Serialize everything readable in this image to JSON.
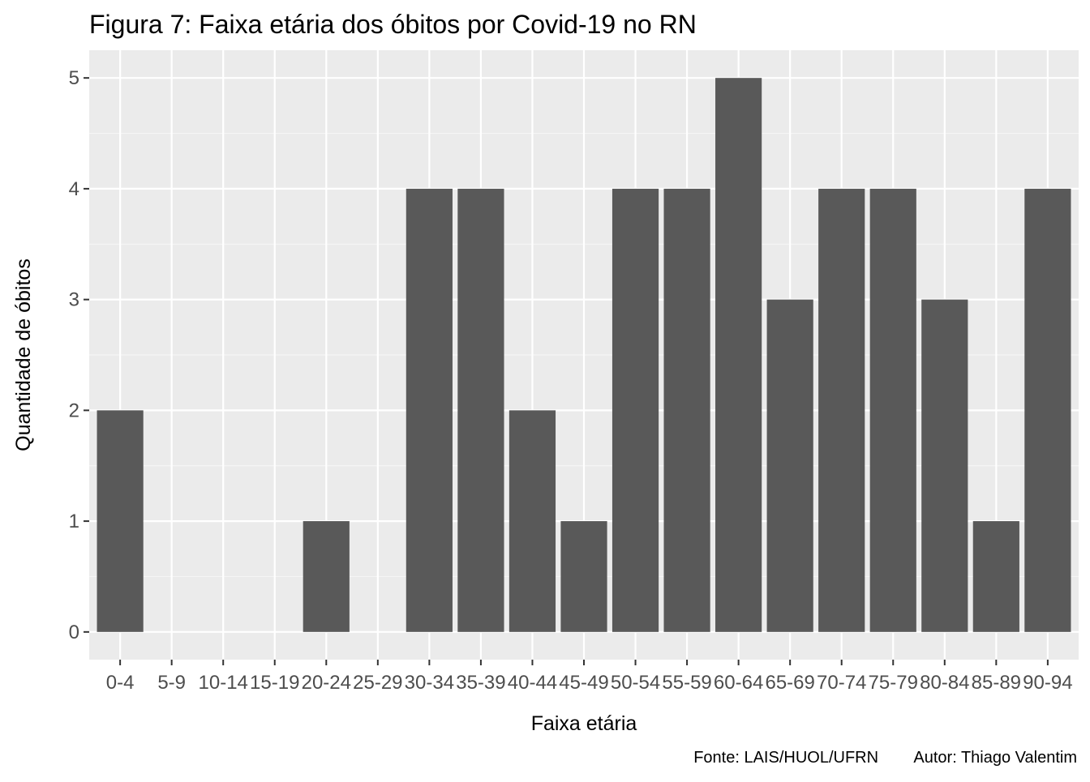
{
  "chart_data": {
    "type": "bar",
    "title": "Figura 7: Faixa etária dos óbitos por Covid-19 no RN",
    "xlabel": "Faixa etária",
    "ylabel": "Quantidade de óbitos",
    "categories": [
      "0-4",
      "5-9",
      "10-14",
      "15-19",
      "20-24",
      "25-29",
      "30-34",
      "35-39",
      "40-44",
      "45-49",
      "50-54",
      "55-59",
      "60-64",
      "65-69",
      "70-74",
      "75-79",
      "80-84",
      "85-89",
      "90-94"
    ],
    "values": [
      2,
      0,
      0,
      0,
      1,
      0,
      4,
      4,
      2,
      1,
      4,
      4,
      5,
      3,
      4,
      4,
      3,
      1,
      4
    ],
    "ylim": [
      -0.25,
      5.25
    ],
    "yticks": [
      0,
      1,
      2,
      3,
      4,
      5
    ],
    "grid": true,
    "legend": "none",
    "caption": "Fonte: LAIS/HUOL/UFRN        Autor: Thiago Valentim"
  },
  "colors": {
    "bar": "#595959",
    "panel_background": "#ebebeb",
    "grid_major": "#ffffff",
    "grid_minor": "#f5f5f5",
    "tick_label": "#4d4d4d",
    "tick_mark": "#333333"
  }
}
